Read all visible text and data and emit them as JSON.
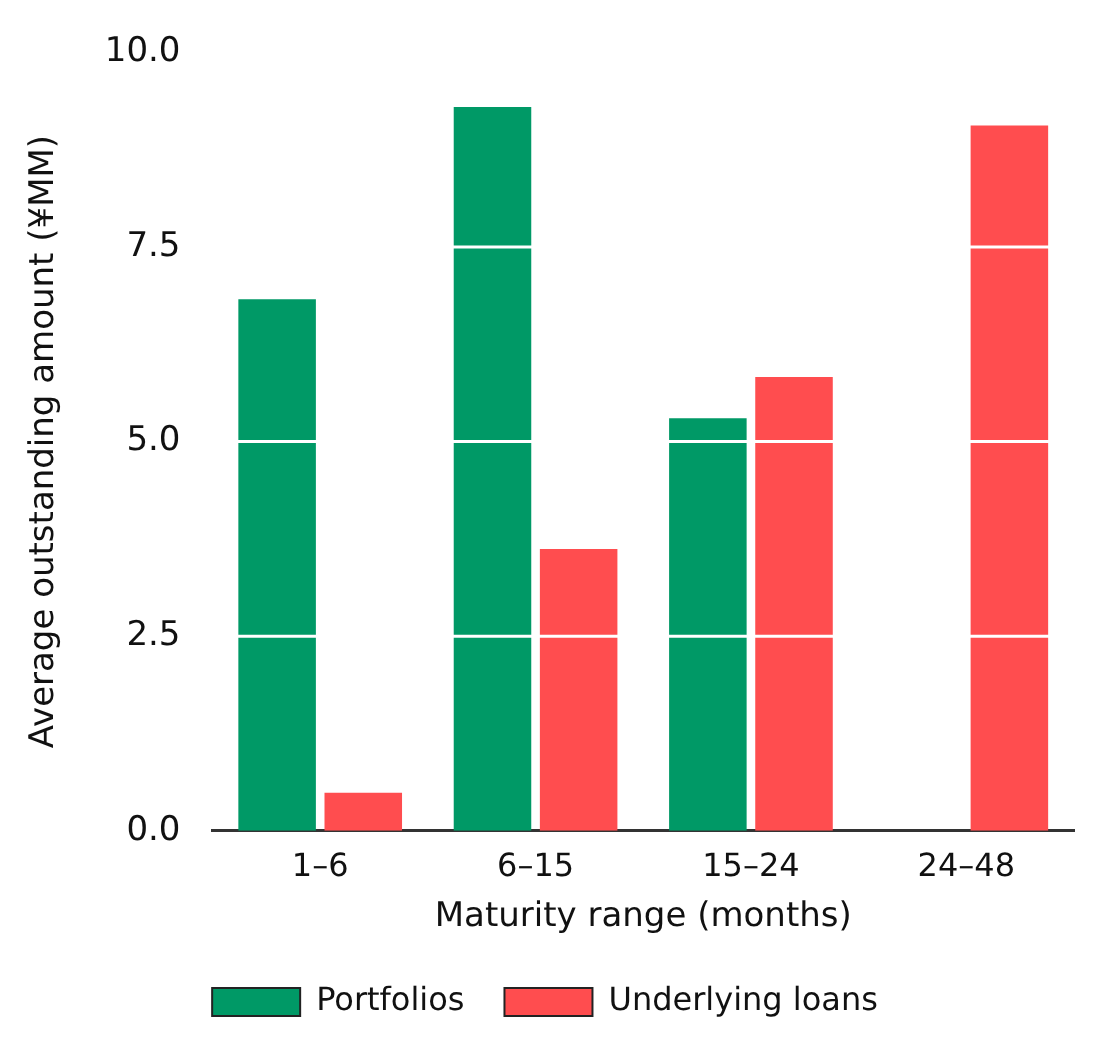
{
  "chart_data": {
    "type": "bar",
    "xlabel": "Maturity range (months)",
    "ylabel": "Average outstanding amount (¥MM)",
    "categories": [
      "1–6",
      "6–15",
      "15–24",
      "24–48"
    ],
    "series": [
      {
        "name": "Portfolios",
        "color": "#009966",
        "values": [
          6.83,
          9.3,
          5.3,
          null
        ]
      },
      {
        "name": "Underlying loans",
        "color": "#ff4d4f",
        "values": [
          0.49,
          3.62,
          5.83,
          9.06
        ]
      }
    ],
    "ylim": [
      0,
      10
    ],
    "yticks": [
      {
        "value": 0,
        "label": "0.0"
      },
      {
        "value": 2.5,
        "label": "2.5"
      },
      {
        "value": 5,
        "label": "5.0"
      },
      {
        "value": 7.5,
        "label": "7.5"
      },
      {
        "value": 10,
        "label": "10.0"
      }
    ],
    "grid": "y",
    "legend": "bottom"
  }
}
